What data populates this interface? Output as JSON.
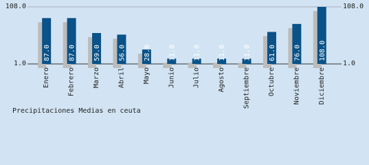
{
  "chart_data": {
    "type": "bar",
    "title": "Precipitaciones Medias en ceuta",
    "categories": [
      "Enero",
      "Febrero",
      "Marzo",
      "Abril",
      "Mayo",
      "Junio",
      "Julio",
      "Agosto",
      "Septiembre",
      "Octubre",
      "Noviembre",
      "Diciembre"
    ],
    "values": [
      87,
      87,
      59,
      56,
      28,
      11,
      11,
      11,
      11,
      61,
      76,
      108
    ],
    "value_labels": [
      "87.0",
      "87.0",
      "59.0",
      "56.0",
      "28.0",
      "11.0",
      "11.0",
      "11.0",
      "11.0",
      "61.0",
      "76.0",
      "108.0"
    ],
    "color": "#0a5288",
    "shadow_color": "#bcbcbc",
    "ylim": [
      1,
      108
    ],
    "yticks": [
      {
        "value": 1,
        "label": "1.0"
      },
      {
        "value": 108,
        "label": "108.0"
      }
    ]
  }
}
